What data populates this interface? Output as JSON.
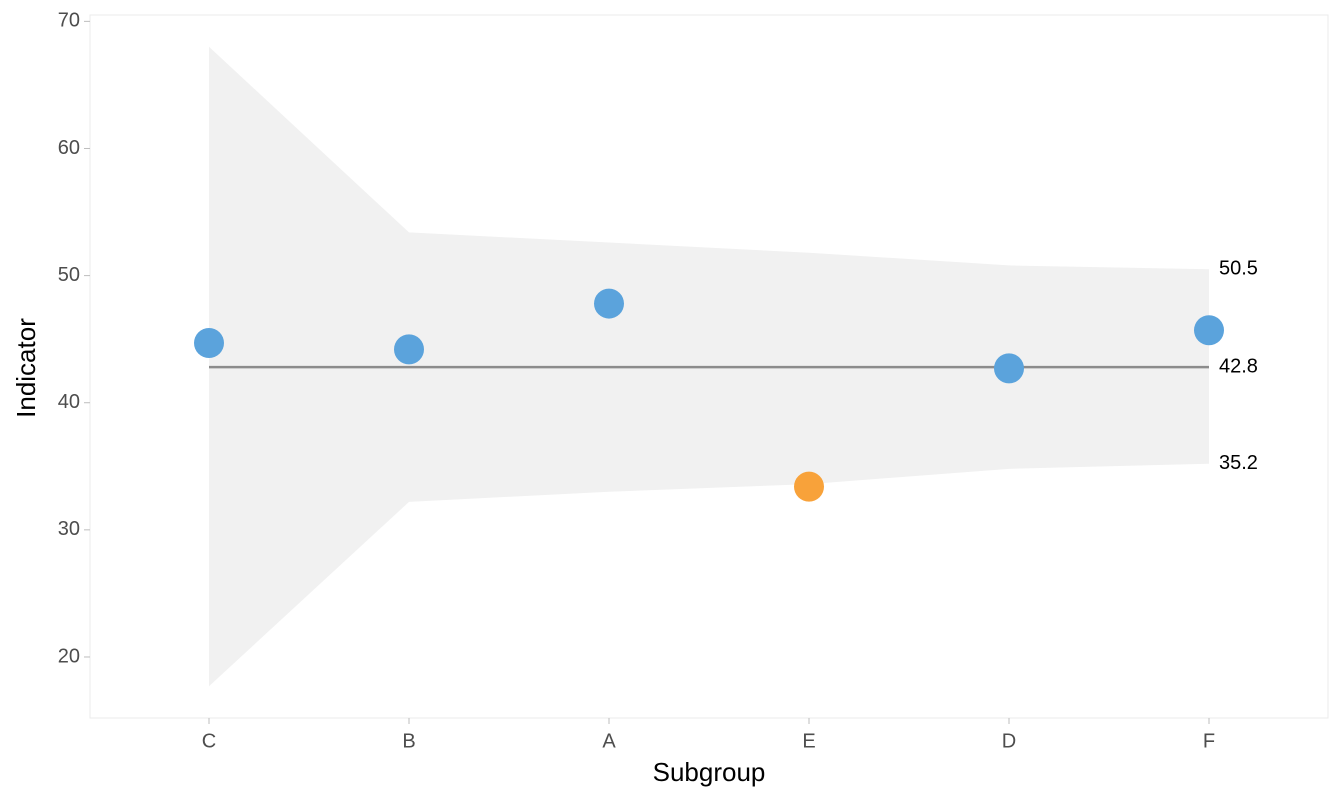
{
  "chart_data": {
    "type": "funnel",
    "x_label": "Subgroup",
    "y_label": "Indicator",
    "categories": [
      "C",
      "B",
      "A",
      "E",
      "D",
      "F"
    ],
    "values": [
      44.7,
      44.2,
      47.8,
      33.4,
      42.7,
      45.7
    ],
    "colors": [
      "#5ba3dc",
      "#5ba3dc",
      "#5ba3dc",
      "#f8a23a",
      "#5ba3dc",
      "#5ba3dc"
    ],
    "mean": 42.8,
    "upper": [
      68.0,
      53.4,
      52.6,
      51.8,
      50.8,
      50.5
    ],
    "lower": [
      17.7,
      32.2,
      33.0,
      33.6,
      34.8,
      35.2
    ],
    "band_color": "#f1f1f1",
    "mean_color": "#8c8c8c",
    "ylim": [
      15.2,
      70.5
    ],
    "yticks": [
      20,
      30,
      40,
      50,
      60,
      70
    ],
    "grid": false
  }
}
